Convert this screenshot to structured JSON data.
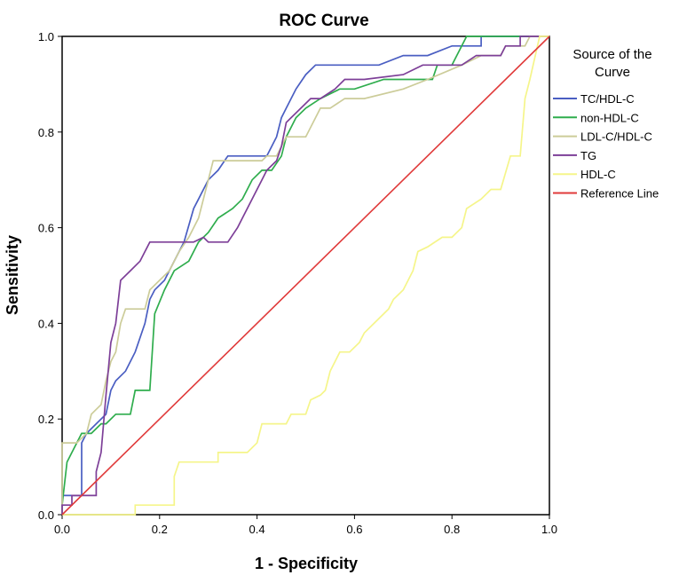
{
  "chart_data": {
    "type": "line",
    "title": "ROC Curve",
    "xlabel": "1 - Specificity",
    "ylabel": "Sensitivity",
    "xlim": [
      0,
      1
    ],
    "ylim": [
      0,
      1
    ],
    "x_ticks": [
      "0.0",
      "0.2",
      "0.4",
      "0.6",
      "0.8",
      "1.0"
    ],
    "y_ticks": [
      "0.0",
      "0.2",
      "0.4",
      "0.6",
      "0.8",
      "1.0"
    ],
    "grid": false,
    "legend": {
      "title_line1": "Source of the",
      "title_line2": "Curve",
      "position": "right"
    },
    "series": [
      {
        "name": "TC/HDL-C",
        "color": "#4a5ec2",
        "points": [
          [
            0,
            0
          ],
          [
            0,
            0.04
          ],
          [
            0.04,
            0.04
          ],
          [
            0.04,
            0.15
          ],
          [
            0.05,
            0.17
          ],
          [
            0.07,
            0.19
          ],
          [
            0.09,
            0.21
          ],
          [
            0.1,
            0.26
          ],
          [
            0.11,
            0.28
          ],
          [
            0.13,
            0.3
          ],
          [
            0.15,
            0.34
          ],
          [
            0.17,
            0.4
          ],
          [
            0.18,
            0.45
          ],
          [
            0.19,
            0.47
          ],
          [
            0.21,
            0.49
          ],
          [
            0.23,
            0.53
          ],
          [
            0.25,
            0.57
          ],
          [
            0.27,
            0.64
          ],
          [
            0.28,
            0.66
          ],
          [
            0.3,
            0.7
          ],
          [
            0.32,
            0.72
          ],
          [
            0.34,
            0.75
          ],
          [
            0.37,
            0.75
          ],
          [
            0.4,
            0.75
          ],
          [
            0.42,
            0.75
          ],
          [
            0.44,
            0.79
          ],
          [
            0.45,
            0.83
          ],
          [
            0.46,
            0.85
          ],
          [
            0.48,
            0.89
          ],
          [
            0.5,
            0.92
          ],
          [
            0.52,
            0.94
          ],
          [
            0.55,
            0.94
          ],
          [
            0.6,
            0.94
          ],
          [
            0.65,
            0.94
          ],
          [
            0.7,
            0.96
          ],
          [
            0.75,
            0.96
          ],
          [
            0.8,
            0.98
          ],
          [
            0.86,
            0.98
          ],
          [
            0.86,
            1.0
          ],
          [
            1.0,
            1.0
          ]
        ]
      },
      {
        "name": "non-HDL-C",
        "color": "#2fad4d",
        "points": [
          [
            0,
            0
          ],
          [
            0,
            0.02
          ],
          [
            0.01,
            0.11
          ],
          [
            0.02,
            0.13
          ],
          [
            0.03,
            0.15
          ],
          [
            0.04,
            0.17
          ],
          [
            0.06,
            0.17
          ],
          [
            0.08,
            0.19
          ],
          [
            0.09,
            0.19
          ],
          [
            0.11,
            0.21
          ],
          [
            0.14,
            0.21
          ],
          [
            0.15,
            0.26
          ],
          [
            0.18,
            0.26
          ],
          [
            0.19,
            0.42
          ],
          [
            0.21,
            0.47
          ],
          [
            0.23,
            0.51
          ],
          [
            0.26,
            0.53
          ],
          [
            0.28,
            0.57
          ],
          [
            0.3,
            0.59
          ],
          [
            0.32,
            0.62
          ],
          [
            0.35,
            0.64
          ],
          [
            0.37,
            0.66
          ],
          [
            0.39,
            0.7
          ],
          [
            0.41,
            0.72
          ],
          [
            0.43,
            0.72
          ],
          [
            0.45,
            0.75
          ],
          [
            0.46,
            0.79
          ],
          [
            0.48,
            0.83
          ],
          [
            0.5,
            0.85
          ],
          [
            0.53,
            0.87
          ],
          [
            0.57,
            0.89
          ],
          [
            0.6,
            0.89
          ],
          [
            0.66,
            0.91
          ],
          [
            0.7,
            0.91
          ],
          [
            0.76,
            0.91
          ],
          [
            0.77,
            0.94
          ],
          [
            0.8,
            0.94
          ],
          [
            0.82,
            0.98
          ],
          [
            0.83,
            1.0
          ],
          [
            1.0,
            1.0
          ]
        ]
      },
      {
        "name": "LDL-C/HDL-C",
        "color": "#cccc99",
        "points": [
          [
            0,
            0
          ],
          [
            0,
            0.15
          ],
          [
            0.03,
            0.15
          ],
          [
            0.05,
            0.17
          ],
          [
            0.06,
            0.21
          ],
          [
            0.08,
            0.23
          ],
          [
            0.09,
            0.28
          ],
          [
            0.1,
            0.32
          ],
          [
            0.11,
            0.34
          ],
          [
            0.12,
            0.4
          ],
          [
            0.13,
            0.43
          ],
          [
            0.17,
            0.43
          ],
          [
            0.18,
            0.47
          ],
          [
            0.2,
            0.49
          ],
          [
            0.22,
            0.51
          ],
          [
            0.24,
            0.55
          ],
          [
            0.26,
            0.58
          ],
          [
            0.28,
            0.62
          ],
          [
            0.3,
            0.7
          ],
          [
            0.31,
            0.74
          ],
          [
            0.34,
            0.74
          ],
          [
            0.38,
            0.74
          ],
          [
            0.41,
            0.74
          ],
          [
            0.42,
            0.75
          ],
          [
            0.44,
            0.75
          ],
          [
            0.45,
            0.77
          ],
          [
            0.46,
            0.79
          ],
          [
            0.5,
            0.79
          ],
          [
            0.53,
            0.85
          ],
          [
            0.55,
            0.85
          ],
          [
            0.58,
            0.87
          ],
          [
            0.62,
            0.87
          ],
          [
            0.7,
            0.89
          ],
          [
            0.75,
            0.91
          ],
          [
            0.82,
            0.94
          ],
          [
            0.86,
            0.96
          ],
          [
            0.9,
            0.96
          ],
          [
            0.91,
            0.98
          ],
          [
            0.95,
            0.98
          ],
          [
            0.96,
            1.0
          ],
          [
            1.0,
            1.0
          ]
        ]
      },
      {
        "name": "TG",
        "color": "#7d3f98",
        "points": [
          [
            0,
            0
          ],
          [
            0,
            0.02
          ],
          [
            0.02,
            0.02
          ],
          [
            0.02,
            0.04
          ],
          [
            0.07,
            0.04
          ],
          [
            0.07,
            0.09
          ],
          [
            0.08,
            0.13
          ],
          [
            0.09,
            0.25
          ],
          [
            0.1,
            0.36
          ],
          [
            0.11,
            0.4
          ],
          [
            0.12,
            0.49
          ],
          [
            0.14,
            0.51
          ],
          [
            0.16,
            0.53
          ],
          [
            0.17,
            0.55
          ],
          [
            0.18,
            0.57
          ],
          [
            0.27,
            0.57
          ],
          [
            0.29,
            0.58
          ],
          [
            0.3,
            0.57
          ],
          [
            0.34,
            0.57
          ],
          [
            0.36,
            0.6
          ],
          [
            0.37,
            0.62
          ],
          [
            0.38,
            0.64
          ],
          [
            0.4,
            0.68
          ],
          [
            0.41,
            0.7
          ],
          [
            0.42,
            0.72
          ],
          [
            0.44,
            0.74
          ],
          [
            0.45,
            0.77
          ],
          [
            0.46,
            0.82
          ],
          [
            0.47,
            0.83
          ],
          [
            0.49,
            0.85
          ],
          [
            0.51,
            0.87
          ],
          [
            0.53,
            0.87
          ],
          [
            0.56,
            0.89
          ],
          [
            0.58,
            0.91
          ],
          [
            0.62,
            0.91
          ],
          [
            0.7,
            0.92
          ],
          [
            0.74,
            0.94
          ],
          [
            0.79,
            0.94
          ],
          [
            0.82,
            0.94
          ],
          [
            0.85,
            0.96
          ],
          [
            0.9,
            0.96
          ],
          [
            0.91,
            0.98
          ],
          [
            0.94,
            0.98
          ],
          [
            0.94,
            1.0
          ],
          [
            1.0,
            1.0
          ]
        ]
      },
      {
        "name": "HDL-C",
        "color": "#f5f58a",
        "points": [
          [
            0,
            0
          ],
          [
            0.15,
            0
          ],
          [
            0.15,
            0.02
          ],
          [
            0.23,
            0.02
          ],
          [
            0.23,
            0.08
          ],
          [
            0.24,
            0.11
          ],
          [
            0.28,
            0.11
          ],
          [
            0.32,
            0.11
          ],
          [
            0.32,
            0.13
          ],
          [
            0.38,
            0.13
          ],
          [
            0.4,
            0.15
          ],
          [
            0.41,
            0.19
          ],
          [
            0.46,
            0.19
          ],
          [
            0.47,
            0.21
          ],
          [
            0.5,
            0.21
          ],
          [
            0.51,
            0.24
          ],
          [
            0.53,
            0.25
          ],
          [
            0.54,
            0.26
          ],
          [
            0.55,
            0.3
          ],
          [
            0.57,
            0.34
          ],
          [
            0.59,
            0.34
          ],
          [
            0.61,
            0.36
          ],
          [
            0.62,
            0.38
          ],
          [
            0.64,
            0.4
          ],
          [
            0.67,
            0.43
          ],
          [
            0.68,
            0.45
          ],
          [
            0.7,
            0.47
          ],
          [
            0.72,
            0.51
          ],
          [
            0.73,
            0.55
          ],
          [
            0.75,
            0.56
          ],
          [
            0.78,
            0.58
          ],
          [
            0.8,
            0.58
          ],
          [
            0.82,
            0.6
          ],
          [
            0.83,
            0.64
          ],
          [
            0.86,
            0.66
          ],
          [
            0.88,
            0.68
          ],
          [
            0.9,
            0.68
          ],
          [
            0.92,
            0.75
          ],
          [
            0.94,
            0.75
          ],
          [
            0.95,
            0.87
          ],
          [
            0.96,
            0.91
          ],
          [
            0.98,
            1.0
          ],
          [
            1.0,
            1.0
          ]
        ]
      },
      {
        "name": "Reference Line",
        "color": "#e03a3a",
        "points": [
          [
            0,
            0
          ],
          [
            1,
            1
          ]
        ]
      }
    ]
  }
}
